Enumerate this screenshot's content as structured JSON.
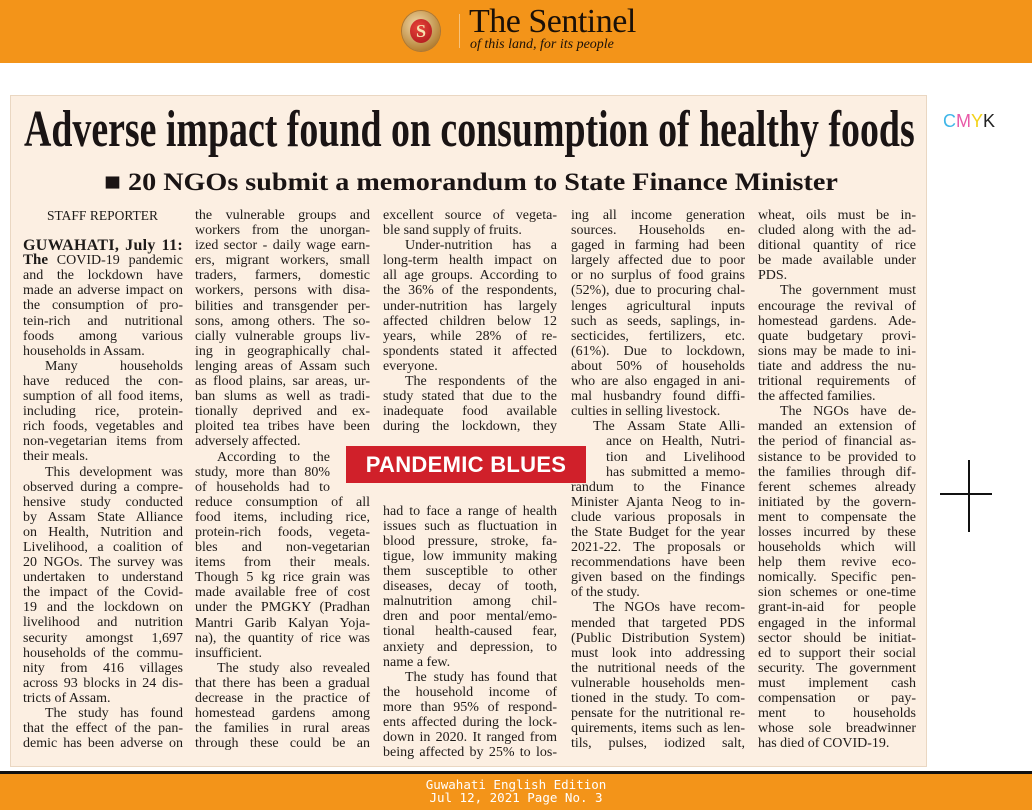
{
  "header": {
    "brand_name": "The Sentinel",
    "tagline": "of this land, for its people",
    "logo_letter": "S",
    "bg_color": "#f39419"
  },
  "article": {
    "headline": "Adverse impact found on consumption of healthy foods",
    "subhead": "■ 20 NGOs submit a memorandum to State Finance Minister",
    "byline": "STAFF REPORTER",
    "dateline": "GUWAHATI, July 11:",
    "lead_word": "The",
    "callout": "PANDEMIC BLUES",
    "columns": [
      [
        {
          "lines": [
            " COVID-19 pandemic",
            "and the lockdown have",
            "made an adverse impact on",
            "the consumption of pro-",
            "tein-rich and nutritional",
            "foods among various",
            "households in Assam."
          ],
          "cont": true
        },
        {
          "lines": [
            "Many households",
            "have reduced the con-",
            "sumption of all food items,",
            "including rice, protein-",
            "rich foods, vegetables and",
            "non-vegetarian items from",
            "their meals."
          ]
        },
        {
          "lines": [
            "This development was",
            "observed during a compre-",
            "hensive study conducted",
            "by Assam State Alliance",
            "on Health, Nutrition and",
            "Livelihood, a coalition of",
            "20 NGOs. The survey was",
            "undertaken to understand",
            "the impact of the Covid-",
            "19 and the lockdown on",
            "livelihood and nutrition",
            "security amongst 1,697",
            "households of the commu-",
            "nity from 416 villages",
            "across 93 blocks in 24 dis-",
            "tricts of Assam."
          ]
        },
        {
          "lines": [
            "The study has found",
            "that the effect of the pan-",
            "demic has been adverse on"
          ],
          "open": true
        }
      ],
      [
        {
          "lines": [
            "the vulnerable groups and",
            "workers from the unorgan-",
            "ized sector - daily wage earn-",
            "ers, migrant workers, small",
            "traders, farmers, domestic",
            "workers, persons with disa-",
            "bilities and transgender per-",
            "sons, among others. The so-",
            "cially vulnerable groups liv-",
            "ing in geographically chal-",
            "lenging areas of Assam such",
            "as flood plains, sar areas, ur-",
            "ban slums as well as tradi-",
            "tionally deprived and ex-",
            "ploited tea tribes have been",
            "adversely affected."
          ],
          "cont": true
        },
        {
          "lines": [
            "According to the",
            "study, more than 80%",
            "of households had to",
            "reduce consumption of all",
            "food items, including rice,",
            "protein-rich foods, vegeta-",
            "bles and non-vegetarian",
            "items from their meals.",
            "Though 5 kg rice grain was",
            "made available free of cost",
            "under the PMGKY (Pradhan",
            "Mantri Garib Kalyan Yoja-",
            "na), the quantity of rice was",
            "insufficient."
          ]
        },
        {
          "lines": [
            "The study also revealed",
            "that there has been a gradual",
            "decrease in the practice of",
            "homestead gardens among",
            "the families in rural areas",
            "through these could be an"
          ],
          "open": true
        }
      ],
      [
        {
          "lines": [
            "excellent source of vegeta-",
            "ble sand supply of fruits."
          ],
          "cont": true
        },
        {
          "lines": [
            "Under-nutrition has a",
            "long-term health impact on",
            "all age groups. According to",
            "the 36% of the respondents,",
            "under-nutrition has largely",
            "affected children below 12",
            "years, while 28% of re-",
            "spondents stated it affected",
            "everyone."
          ]
        },
        {
          "lines": [
            "The respondents of the",
            "study stated that due to the",
            "inadequate food available",
            "during the lockdown, they"
          ],
          "open": true
        },
        {
          "lines": [
            "had to face a range of health",
            "issues such as fluctuation in",
            "blood pressure, stroke, fa-",
            "tigue, low immunity making",
            "them susceptible to other",
            "diseases, decay of tooth,",
            "malnutrition among chil-",
            "dren and poor mental/emo-",
            "tional health-caused fear,",
            "anxiety and depression, to",
            "name a few."
          ],
          "cont": true
        },
        {
          "lines": [
            "The study has found that",
            "the household income of",
            "more than 95% of respond-",
            "ents affected during the lock-",
            "down in 2020. It ranged from",
            "being affected by 25% to los-"
          ],
          "open": true
        }
      ],
      [
        {
          "lines": [
            "ing all income generation",
            "sources. Households en-",
            "gaged in farming had been",
            "largely affected due to poor",
            "or no surplus of food grains",
            "(52%), due to procuring chal-",
            "lenges agricultural inputs",
            "such as seeds, saplings, in-",
            "secticides, fertilizers, etc.",
            "(61%). Due to lockdown,",
            "about 50% of households",
            "who are also engaged in ani-",
            "mal husbandry found diffi-",
            "culties in selling livestock."
          ],
          "cont": true
        },
        {
          "lines": [
            "The Assam State Alli-",
            "ance on Health, Nutri-",
            "tion and Livelihood",
            "has submitted a memo-",
            "randum to the Finance",
            "Minister Ajanta Neog to in-",
            "clude various proposals in",
            "the State Budget for the year",
            "2021-22. The proposals or",
            "recommendations have been",
            "given based on the findings",
            "of the study."
          ]
        },
        {
          "lines": [
            "The NGOs have recom-",
            "mended that targeted PDS",
            "(Public Distribution System)",
            "must look into addressing",
            "the nutritional needs of the",
            "vulnerable households men-",
            "tioned in the study. To com-",
            "pensate for the nutritional re-",
            "quirements, items such as len-",
            "tils, pulses, iodized salt,"
          ],
          "open": true
        }
      ],
      [
        {
          "lines": [
            "wheat, oils must be in-",
            "cluded along with the ad-",
            "ditional quantity of rice",
            "be made available under",
            "PDS."
          ],
          "cont": true
        },
        {
          "lines": [
            "The government must",
            "encourage the revival of",
            "homestead gardens. Ade-",
            "quate budgetary provi-",
            "sions may be made to ini-",
            "tiate and address the nu-",
            "tritional requirements of",
            "the affected families."
          ]
        },
        {
          "lines": [
            "The NGOs have de-",
            "manded an extension of",
            "the period of financial as-",
            "sistance to be provided to",
            "the families through dif-",
            "ferent schemes already",
            "initiated by the govern-",
            "ment to compensate the",
            "losses incurred by these",
            "households which will",
            "help them revive eco-",
            "nomically. Specific pen-",
            "sion schemes or one-time",
            "grant-in-aid for people",
            "engaged in the informal",
            "sector should be initiat-",
            "ed to support their social",
            "security. The government",
            "must implement cash",
            "compensation or pay-",
            "ment to households",
            "whose sole breadwinner",
            "has died of COVID-19."
          ]
        }
      ]
    ]
  },
  "margin": {
    "cmyk": [
      "C",
      "M",
      "Y",
      "K"
    ],
    "cmyk_colors": [
      "#3fb6e8",
      "#e85aa8",
      "#f2d21a",
      "#222222"
    ]
  },
  "footer": {
    "edition": "Guwahati English Edition",
    "date_page": "Jul 12, 2021 Page No. 3"
  }
}
